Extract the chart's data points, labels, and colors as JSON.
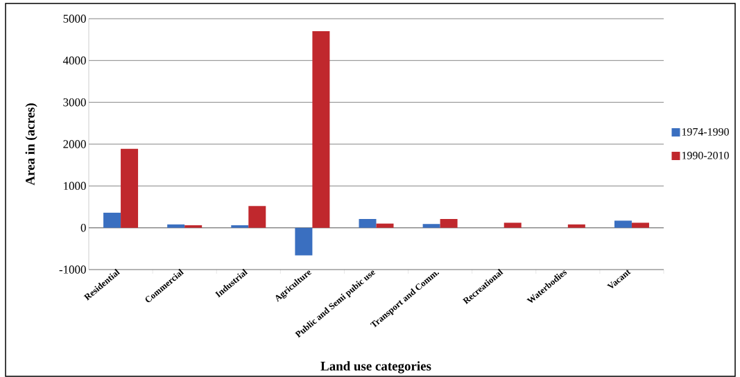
{
  "chart_data": {
    "type": "bar",
    "xlabel": "Land use categories",
    "ylabel": "Area in (acres)",
    "categories": [
      "Residential",
      "Commercial",
      "Industrial",
      "Agriculture",
      "Public and Semi pubic use",
      "Transport and Comm.",
      "Recreational",
      "Waterbodies",
      "Vacant"
    ],
    "series": [
      {
        "name": "1974-1990",
        "color": "#3a6fc0",
        "values": [
          360,
          80,
          60,
          -660,
          210,
          90,
          0,
          0,
          170
        ]
      },
      {
        "name": "1990-2010",
        "color": "#c0282d",
        "values": [
          1890,
          60,
          520,
          4700,
          100,
          210,
          120,
          80,
          120
        ]
      }
    ],
    "ylim": [
      -1000,
      5000
    ],
    "yticks": [
      -1000,
      0,
      1000,
      2000,
      3000,
      4000,
      5000
    ],
    "grid": "y",
    "legend": "right"
  }
}
